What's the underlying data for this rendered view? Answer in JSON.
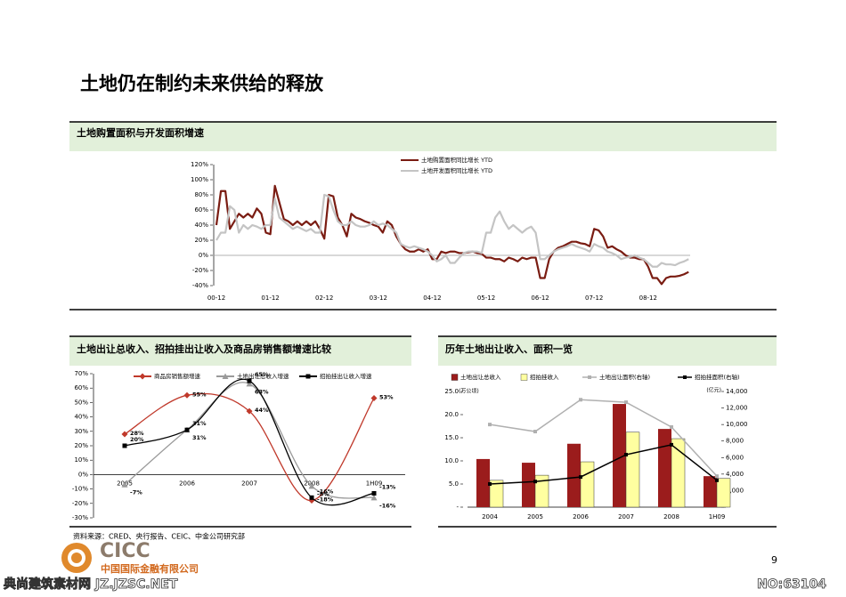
{
  "title": "土地仍在制约未来供给的释放",
  "chart_data": [
    {
      "type": "line",
      "title": "土地购置面积与开发面积增速",
      "categories": [
        "00-12",
        null,
        null,
        null,
        null,
        null,
        null,
        null,
        null,
        null,
        null,
        null,
        "01-12",
        null,
        null,
        null,
        null,
        null,
        null,
        null,
        null,
        null,
        null,
        null,
        "02-12",
        null,
        null,
        null,
        null,
        null,
        null,
        null,
        null,
        null,
        null,
        null,
        "03-12",
        null,
        null,
        null,
        null,
        null,
        null,
        null,
        null,
        null,
        null,
        null,
        "04-12",
        null,
        null,
        null,
        null,
        null,
        null,
        null,
        null,
        null,
        null,
        null,
        "05-12",
        null,
        null,
        null,
        null,
        null,
        null,
        null,
        null,
        null,
        null,
        null,
        "06-12",
        null,
        null,
        null,
        null,
        null,
        null,
        null,
        null,
        null,
        null,
        null,
        "07-12",
        null,
        null,
        null,
        null,
        null,
        null,
        null,
        null,
        null,
        null,
        null,
        "08-12",
        null,
        null,
        null,
        null,
        null,
        null,
        null,
        null,
        null
      ],
      "series": [
        {
          "name": "土地购置面积同比增长 YTD",
          "color": "#7a1c12",
          "values": [
            40,
            85,
            85,
            35,
            45,
            55,
            50,
            55,
            50,
            62,
            55,
            30,
            28,
            92,
            70,
            48,
            45,
            40,
            45,
            40,
            45,
            40,
            45,
            35,
            22,
            80,
            78,
            50,
            40,
            25,
            55,
            50,
            48,
            45,
            43,
            40,
            38,
            30,
            45,
            40,
            25,
            15,
            8,
            5,
            5,
            8,
            5,
            8,
            -5,
            -5,
            5,
            3,
            5,
            5,
            3,
            3,
            4,
            5,
            3,
            2,
            -3,
            -3,
            -5,
            -5,
            -8,
            -3,
            -5,
            -8,
            -3,
            -5,
            -3,
            -3,
            -30,
            -30,
            -5,
            5,
            10,
            12,
            15,
            18,
            18,
            16,
            15,
            12,
            35,
            33,
            25,
            10,
            12,
            8,
            5,
            0,
            -3,
            -3,
            -5,
            -5,
            -15,
            -30,
            -30,
            -38,
            -30,
            -28,
            -28,
            -27,
            -25,
            -22
          ]
        },
        {
          "name": "土地开发面积同比增长 YTD",
          "color": "#c4c4c4",
          "values": [
            20,
            30,
            30,
            65,
            60,
            30,
            40,
            35,
            40,
            38,
            35,
            40,
            40,
            75,
            50,
            45,
            40,
            35,
            38,
            35,
            32,
            35,
            30,
            30,
            80,
            78,
            60,
            45,
            40,
            40,
            45,
            40,
            38,
            38,
            40,
            45,
            40,
            42,
            40,
            35,
            30,
            15,
            12,
            10,
            12,
            10,
            8,
            5,
            0,
            -8,
            -5,
            0,
            -10,
            -10,
            -3,
            3,
            5,
            5,
            5,
            3,
            30,
            30,
            50,
            58,
            45,
            35,
            40,
            35,
            30,
            35,
            38,
            30,
            -5,
            -5,
            0,
            5,
            8,
            10,
            12,
            15,
            12,
            10,
            8,
            5,
            15,
            12,
            10,
            5,
            3,
            0,
            -5,
            -3,
            -2,
            0,
            -3,
            -5,
            -10,
            -15,
            -15,
            -10,
            -12,
            -12,
            -13,
            -10,
            -8,
            -5
          ]
        }
      ],
      "ylim": [
        -40,
        120
      ],
      "yticks": [
        {
          "value": -40,
          "label": "-40%"
        },
        {
          "value": -20,
          "label": "-20%"
        },
        {
          "value": 0,
          "label": "0%"
        },
        {
          "value": 20,
          "label": "20%"
        },
        {
          "value": 40,
          "label": "40%"
        },
        {
          "value": 60,
          "label": "60%"
        },
        {
          "value": 80,
          "label": "80%"
        },
        {
          "value": 100,
          "label": "100%"
        },
        {
          "value": 120,
          "label": "120%"
        }
      ],
      "legend": "top-right"
    },
    {
      "type": "line",
      "smooth": true,
      "title": "土地出让总收入、招拍挂出让收入及商品房销售额增速比较",
      "categories": [
        "2005",
        "2006",
        "2007",
        "2008",
        "1H09"
      ],
      "series": [
        {
          "name": "商品房销售额增速",
          "color": "#c0392b",
          "marker": "diamond",
          "values": [
            28,
            55,
            44,
            -18,
            53
          ],
          "value_labels": [
            "28%",
            "55%",
            "44%",
            "-18%",
            "53%"
          ]
        },
        {
          "name": "土地出让总收入增速",
          "color": "#9a9a9a",
          "marker": "triangle",
          "values": [
            -7,
            31,
            63,
            -8,
            -16
          ],
          "value_labels": [
            "-7%",
            "31%",
            "63%",
            "-8%",
            "-16%"
          ]
        },
        {
          "name": "招拍挂出让收入增速",
          "color": "#000000",
          "marker": "square",
          "values": [
            20,
            31,
            65,
            -16,
            -13
          ],
          "value_labels": [
            "20%",
            "31%",
            "65%",
            "-16%",
            "-13%"
          ]
        }
      ],
      "ylim": [
        -30,
        70
      ],
      "yticks": [
        {
          "value": -30,
          "label": "-30%"
        },
        {
          "value": -20,
          "label": "-20%"
        },
        {
          "value": -10,
          "label": "-10%"
        },
        {
          "value": 0,
          "label": "0%"
        },
        {
          "value": 10,
          "label": "10%"
        },
        {
          "value": 20,
          "label": "20%"
        },
        {
          "value": 30,
          "label": "30%"
        },
        {
          "value": 40,
          "label": "40%"
        },
        {
          "value": 50,
          "label": "50%"
        },
        {
          "value": 60,
          "label": "60%"
        },
        {
          "value": 70,
          "label": "70%"
        }
      ],
      "legend": "top"
    },
    {
      "type": "combo",
      "title": "历年土地出让收入、面积一览",
      "categories": [
        "2004",
        "2005",
        "2006",
        "2007",
        "2008",
        "1H09"
      ],
      "series": [
        {
          "name": "土地出让总收入",
          "type": "bar",
          "color": "#9b1c1c",
          "values": [
            10.4,
            9.6,
            13.7,
            22.3,
            16.9,
            6.7
          ]
        },
        {
          "name": "招拍挂收入",
          "type": "bar",
          "color": "#ffffa0",
          "values": [
            5.8,
            6.9,
            9.8,
            16.2,
            14.8,
            6.2
          ]
        },
        {
          "name": "土地出让面积(右轴)",
          "type": "line",
          "axis": "y2",
          "color": "#b0b0b0",
          "values": [
            10000,
            9150,
            13000,
            12700,
            9700,
            3750
          ]
        },
        {
          "name": "招拍挂面积(右轴)",
          "type": "line",
          "axis": "y2",
          "color": "#000000",
          "values": [
            2800,
            3100,
            3650,
            6350,
            7550,
            3250
          ]
        }
      ],
      "ylim": [
        0,
        25
      ],
      "yticks": [
        {
          "value": 0,
          "label": "-"
        },
        {
          "value": 5,
          "label": "5.0"
        },
        {
          "value": 10,
          "label": "10.0"
        },
        {
          "value": 15,
          "label": "15.0"
        },
        {
          "value": 20,
          "label": "20.0"
        },
        {
          "value": 25,
          "label": "25.0"
        }
      ],
      "y2lim": [
        0,
        14000
      ],
      "y2ticks": [
        {
          "value": 0,
          "label": "-"
        },
        {
          "value": 2000,
          "label": "2,000"
        },
        {
          "value": 4000,
          "label": "4,000"
        },
        {
          "value": 6000,
          "label": "6,000"
        },
        {
          "value": 8000,
          "label": "8,000"
        },
        {
          "value": 10000,
          "label": "10,000"
        },
        {
          "value": 12000,
          "label": "12,000"
        },
        {
          "value": 14000,
          "label": "14,000"
        }
      ],
      "ylabel": "(万公顷)",
      "y2label": "(亿元)",
      "legend": "top"
    }
  ],
  "footer": {
    "source": "资料来源：CRED、央行报告、CEIC、中金公司研究部",
    "logo": "CICC",
    "company": "中国国际金融有限公司",
    "page_number": "9"
  },
  "watermark": {
    "site": "典尚建筑素材网 JZ.JZSC.NET",
    "id": "NO:63104"
  }
}
